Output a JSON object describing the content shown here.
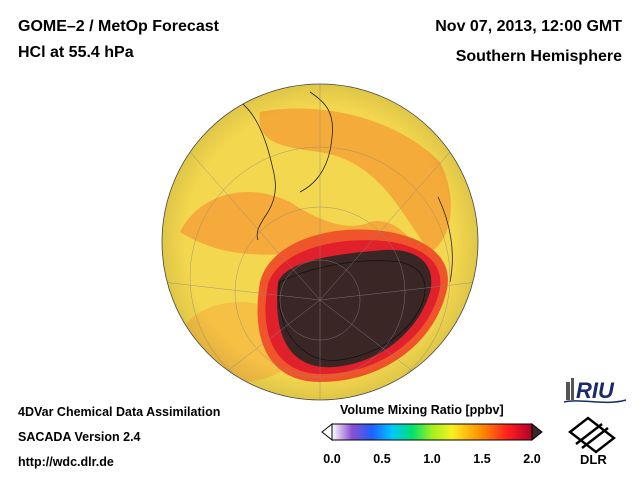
{
  "header": {
    "title_line1": "GOME–2 / MetOp Forecast",
    "title_line2": "HCl at 55.4 hPa",
    "date": "Nov 07, 2013, 12:00 GMT",
    "region": "Southern Hemisphere"
  },
  "footer": {
    "line1": "4DVar Chemical Data Assimilation",
    "line2": "SACADA Version 2.4",
    "line3": "http://wdc.dlr.de"
  },
  "colorbar": {
    "title": "Volume Mixing Ratio [ppbv]",
    "ticks": [
      "0.0",
      "0.5",
      "1.0",
      "1.5",
      "2.0"
    ],
    "min": 0.0,
    "max": 2.0,
    "colors": [
      "#ffffff",
      "#8a4fd0",
      "#1f5fff",
      "#00c8ff",
      "#00e070",
      "#a0f020",
      "#f8f020",
      "#ff8a00",
      "#ff2020",
      "#b0002a",
      "#3b2222"
    ]
  },
  "map": {
    "projection": "orthographic south polar",
    "colors": {
      "ocean_bg": "#f0d24a",
      "band": "#f4a032",
      "ring": "#ee3a2a",
      "ring_dark": "#c8102a",
      "hole": "#3b2626"
    }
  },
  "logos": {
    "riu": "RIU",
    "dlr": "DLR"
  }
}
